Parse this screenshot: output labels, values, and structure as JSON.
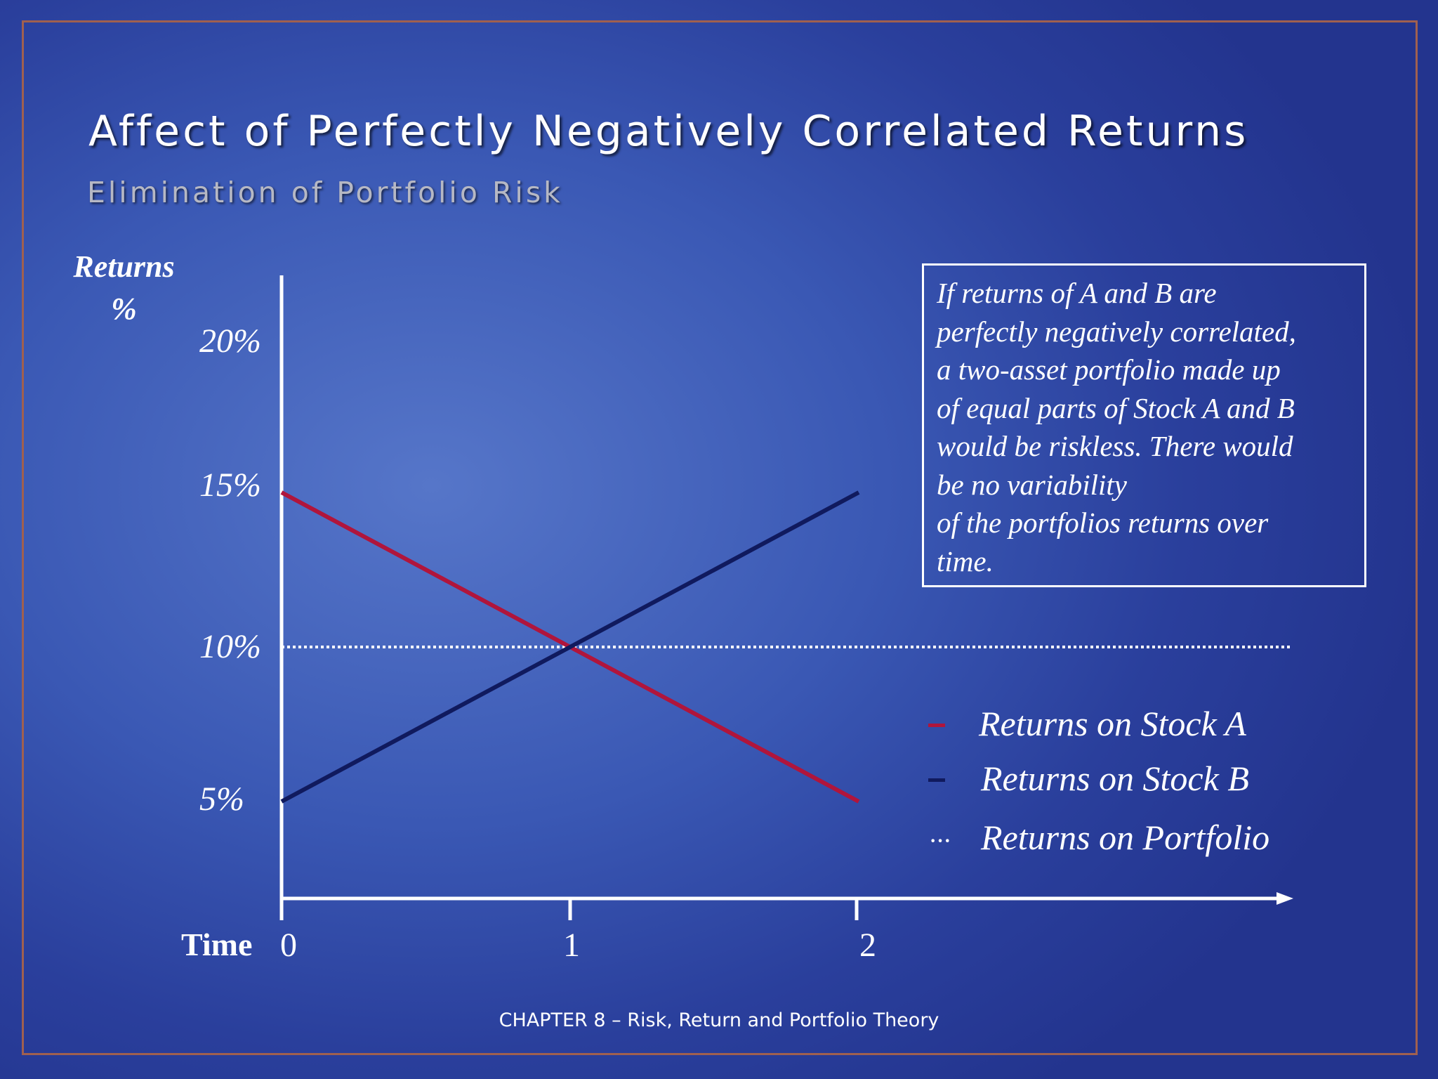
{
  "slide": {
    "title": "Affect of Perfectly Negatively Correlated Returns",
    "subtitle": "Elimination of Portfolio Risk",
    "footer": "CHAPTER 8 – Risk, Return and Portfolio Theory"
  },
  "note": {
    "lines": [
      "If returns of A and B are",
      "perfectly negatively correlated,",
      "a two-asset portfolio made up",
      "of equal parts of Stock A and B",
      "would be riskless.  There would",
      "be no variability",
      "of the portfolios returns over",
      "time."
    ]
  },
  "chart_data": {
    "type": "line",
    "xlabel": "Time",
    "ylabel": [
      "Returns",
      "%"
    ],
    "x_ticks": [
      "0",
      "1",
      "2"
    ],
    "y_ticks": [
      "5%",
      "10%",
      "15%",
      "20%"
    ],
    "series": [
      {
        "name": "Returns on Stock A",
        "color": "#b0153c",
        "style": "solid",
        "x": [
          0,
          2
        ],
        "y": [
          15,
          5
        ]
      },
      {
        "name": "Returns on Stock B",
        "color": "#101a5e",
        "style": "solid",
        "x": [
          0,
          2
        ],
        "y": [
          5,
          15
        ]
      },
      {
        "name": "Returns on Portfolio",
        "color": "#ffffff",
        "style": "dotted",
        "x": [
          0,
          3.5
        ],
        "y": [
          10,
          10
        ]
      }
    ],
    "legend_placement": "bottom-right",
    "grid": false
  }
}
